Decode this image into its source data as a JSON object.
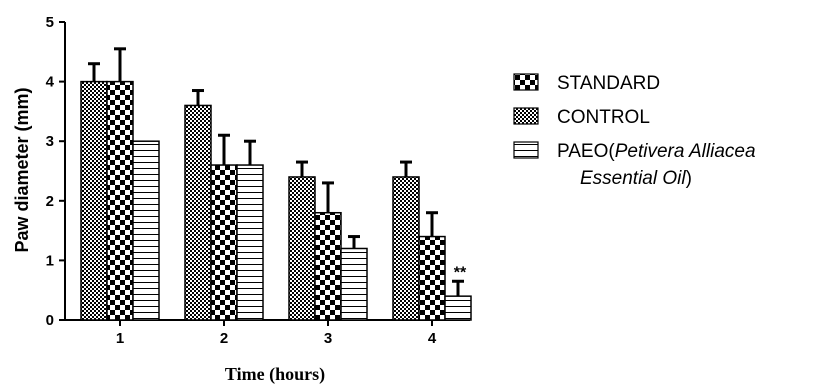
{
  "chart_data": {
    "type": "bar",
    "title": "",
    "xlabel": "Time (hours)",
    "ylabel": "Paw diameter (mm)",
    "ylim": [
      0,
      5
    ],
    "yticks": [
      "0",
      "1",
      "2",
      "3",
      "4",
      "5"
    ],
    "categories": [
      "1",
      "2",
      "3",
      "4"
    ],
    "series": [
      {
        "name": "CONTROL",
        "pattern": "fine-check",
        "values": [
          4.0,
          3.6,
          2.4,
          2.4
        ],
        "errors": [
          0.3,
          0.25,
          0.25,
          0.25
        ]
      },
      {
        "name": "STANDARD",
        "pattern": "coarse-check",
        "values": [
          4.0,
          2.6,
          1.8,
          1.4
        ],
        "errors": [
          0.55,
          0.5,
          0.5,
          0.4
        ]
      },
      {
        "name": "PAEO",
        "pattern": "horizontal-lines",
        "values": [
          3.0,
          2.6,
          1.2,
          0.4
        ],
        "errors": [
          0,
          0.4,
          0.2,
          0.25
        ]
      }
    ],
    "legend": {
      "position": "right",
      "items": [
        {
          "text": "STANDARD",
          "pattern": "coarse-check"
        },
        {
          "text": "CONTROL",
          "pattern": "fine-check"
        },
        {
          "text_prefix": "PAEO(",
          "text_italic": "Petivera Alliacea",
          "text_line2_italic": "Essential Oil",
          "text_suffix": ")",
          "pattern": "horizontal-lines"
        }
      ]
    },
    "annotations": [
      {
        "text": "**",
        "category": "4",
        "series": "PAEO"
      }
    ]
  }
}
